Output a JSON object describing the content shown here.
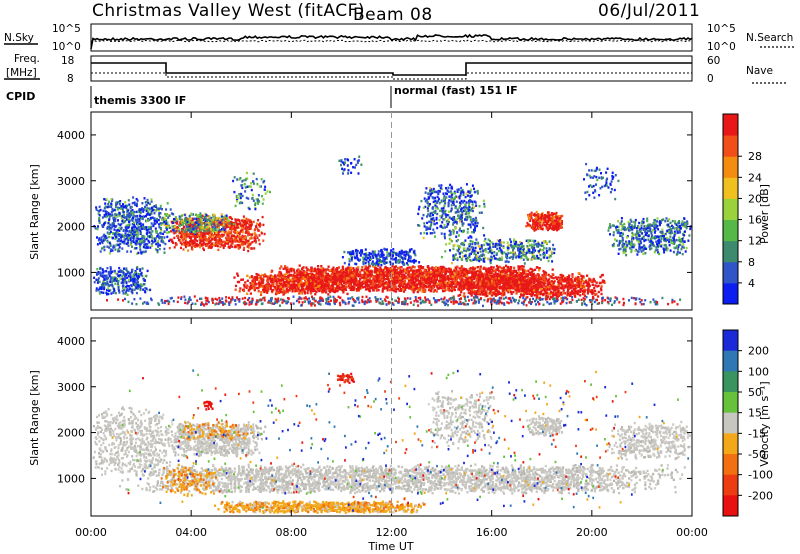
{
  "header": {
    "title": "Christmas Valley West (fitACF)",
    "beam": "Beam 08",
    "date": "06/Jul/2011"
  },
  "panels": {
    "nsky": {
      "label": "N.Sky",
      "ticks": [
        "10^5",
        "10^0"
      ],
      "right_label": "N.Search",
      "right_ticks": [
        "10^5",
        "10^0"
      ]
    },
    "freq": {
      "label_line1": "Freq.",
      "label_line2": "[MHz]",
      "ticks": [
        "18",
        "8"
      ],
      "right_label": "Nave",
      "right_ticks": [
        "60",
        "0"
      ]
    },
    "cpid": {
      "label": "CPID",
      "modes": [
        "themis 3300 IF",
        "normal (fast) 151 IF"
      ]
    }
  },
  "chart_data": [
    {
      "type": "heatmap",
      "title": "",
      "ylabel": "Slant Range [km]",
      "xlabel": "",
      "x_ticks": [
        "00:00",
        "04:00",
        "08:00",
        "12:00",
        "16:00",
        "20:00",
        "00:00"
      ],
      "y_ticks": [
        "1000",
        "2000",
        "3000",
        "4000"
      ],
      "ylim": [
        180,
        4500
      ],
      "colorbar": {
        "label": "Power [dB]",
        "ticks": [
          "4",
          "8",
          "12",
          "16",
          "20",
          "24",
          "28"
        ],
        "colors": [
          "#0b1df0",
          "#2f55c8",
          "#3d8a6e",
          "#57b84a",
          "#99d23a",
          "#f0c020",
          "#f48c10",
          "#f05018",
          "#e81818"
        ]
      }
    },
    {
      "type": "heatmap",
      "title": "",
      "ylabel": "Slant Range [km]",
      "xlabel": "Time UT",
      "x_ticks": [
        "00:00",
        "04:00",
        "08:00",
        "12:00",
        "16:00",
        "20:00",
        "00:00"
      ],
      "y_ticks": [
        "1000",
        "2000",
        "3000",
        "4000"
      ],
      "ylim": [
        180,
        4500
      ],
      "colorbar": {
        "label": "Velocity [m s⁻¹]",
        "ticks": [
          "200",
          "100",
          "50",
          "15",
          "-15",
          "-50",
          "-100",
          "-200"
        ],
        "colors": [
          "#1a2ad8",
          "#3078b4",
          "#3a9460",
          "#66c23a",
          "#c8c6c0",
          "#f2a818",
          "#f27010",
          "#ee3c12",
          "#e81010"
        ]
      }
    }
  ]
}
